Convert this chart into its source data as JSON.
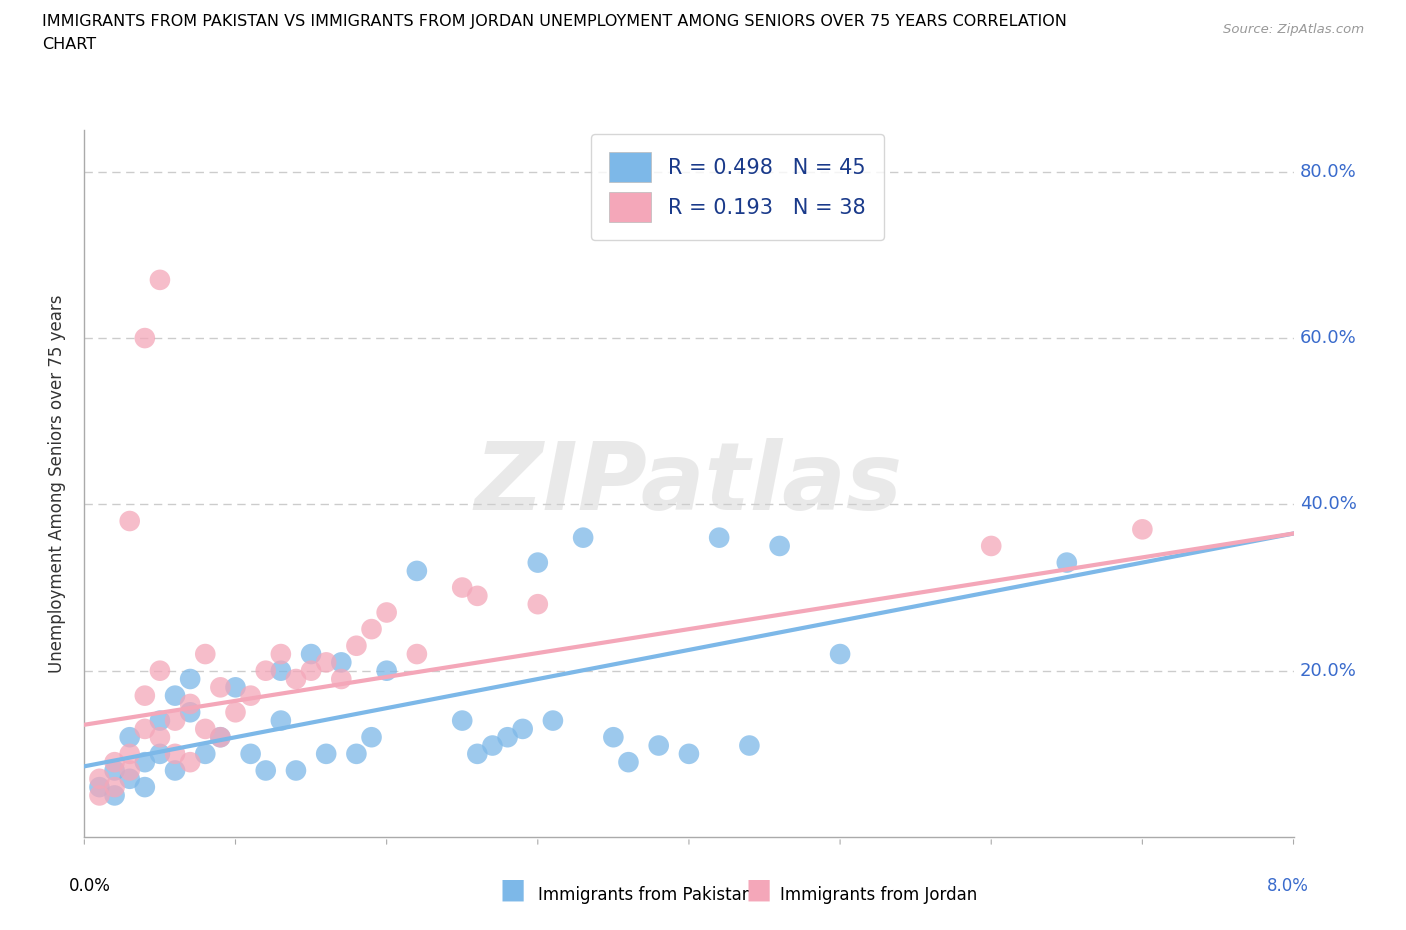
{
  "title_line1": "IMMIGRANTS FROM PAKISTAN VS IMMIGRANTS FROM JORDAN UNEMPLOYMENT AMONG SENIORS OVER 75 YEARS CORRELATION",
  "title_line2": "CHART",
  "source": "Source: ZipAtlas.com",
  "ylabel": "Unemployment Among Seniors over 75 years",
  "xlim": [
    0.0,
    0.08
  ],
  "ylim": [
    0.0,
    0.85
  ],
  "pakistan_color": "#7db8e8",
  "jordan_color": "#f4a7b9",
  "pakistan_R": 0.498,
  "pakistan_N": 45,
  "jordan_R": 0.193,
  "jordan_N": 38,
  "pakistan_scatter": [
    [
      0.001,
      0.06
    ],
    [
      0.002,
      0.08
    ],
    [
      0.002,
      0.05
    ],
    [
      0.003,
      0.07
    ],
    [
      0.003,
      0.12
    ],
    [
      0.004,
      0.09
    ],
    [
      0.004,
      0.06
    ],
    [
      0.005,
      0.1
    ],
    [
      0.005,
      0.14
    ],
    [
      0.006,
      0.08
    ],
    [
      0.006,
      0.17
    ],
    [
      0.007,
      0.15
    ],
    [
      0.007,
      0.19
    ],
    [
      0.008,
      0.1
    ],
    [
      0.009,
      0.12
    ],
    [
      0.01,
      0.18
    ],
    [
      0.011,
      0.1
    ],
    [
      0.012,
      0.08
    ],
    [
      0.013,
      0.14
    ],
    [
      0.013,
      0.2
    ],
    [
      0.014,
      0.08
    ],
    [
      0.015,
      0.22
    ],
    [
      0.016,
      0.1
    ],
    [
      0.017,
      0.21
    ],
    [
      0.018,
      0.1
    ],
    [
      0.019,
      0.12
    ],
    [
      0.02,
      0.2
    ],
    [
      0.022,
      0.32
    ],
    [
      0.025,
      0.14
    ],
    [
      0.026,
      0.1
    ],
    [
      0.027,
      0.11
    ],
    [
      0.028,
      0.12
    ],
    [
      0.029,
      0.13
    ],
    [
      0.03,
      0.33
    ],
    [
      0.031,
      0.14
    ],
    [
      0.033,
      0.36
    ],
    [
      0.035,
      0.12
    ],
    [
      0.036,
      0.09
    ],
    [
      0.038,
      0.11
    ],
    [
      0.04,
      0.1
    ],
    [
      0.042,
      0.36
    ],
    [
      0.044,
      0.11
    ],
    [
      0.046,
      0.35
    ],
    [
      0.05,
      0.22
    ],
    [
      0.065,
      0.33
    ]
  ],
  "jordan_scatter": [
    [
      0.001,
      0.05
    ],
    [
      0.001,
      0.07
    ],
    [
      0.002,
      0.06
    ],
    [
      0.002,
      0.09
    ],
    [
      0.003,
      0.08
    ],
    [
      0.003,
      0.1
    ],
    [
      0.003,
      0.38
    ],
    [
      0.004,
      0.13
    ],
    [
      0.004,
      0.17
    ],
    [
      0.004,
      0.6
    ],
    [
      0.005,
      0.12
    ],
    [
      0.005,
      0.2
    ],
    [
      0.005,
      0.67
    ],
    [
      0.006,
      0.1
    ],
    [
      0.006,
      0.14
    ],
    [
      0.007,
      0.09
    ],
    [
      0.007,
      0.16
    ],
    [
      0.008,
      0.13
    ],
    [
      0.008,
      0.22
    ],
    [
      0.009,
      0.12
    ],
    [
      0.009,
      0.18
    ],
    [
      0.01,
      0.15
    ],
    [
      0.011,
      0.17
    ],
    [
      0.012,
      0.2
    ],
    [
      0.013,
      0.22
    ],
    [
      0.014,
      0.19
    ],
    [
      0.015,
      0.2
    ],
    [
      0.016,
      0.21
    ],
    [
      0.017,
      0.19
    ],
    [
      0.018,
      0.23
    ],
    [
      0.019,
      0.25
    ],
    [
      0.02,
      0.27
    ],
    [
      0.022,
      0.22
    ],
    [
      0.025,
      0.3
    ],
    [
      0.026,
      0.29
    ],
    [
      0.03,
      0.28
    ],
    [
      0.06,
      0.35
    ],
    [
      0.07,
      0.37
    ]
  ],
  "pakistan_trend_x": [
    0.0,
    0.08
  ],
  "pakistan_trend_y": [
    0.085,
    0.365
  ],
  "jordan_trend_x": [
    0.0,
    0.08
  ],
  "jordan_trend_y": [
    0.135,
    0.365
  ],
  "ytick_vals": [
    0.0,
    0.2,
    0.4,
    0.6,
    0.8
  ],
  "ytick_labels": [
    "",
    "20.0%",
    "40.0%",
    "60.0%",
    "80.0%"
  ],
  "watermark": "ZIPatlas",
  "background_color": "#ffffff",
  "grid_dash_color": "#cccccc",
  "axis_color": "#aaaaaa",
  "ytick_color": "#3a6bcc",
  "legend_text_color": "#1a3a8a"
}
